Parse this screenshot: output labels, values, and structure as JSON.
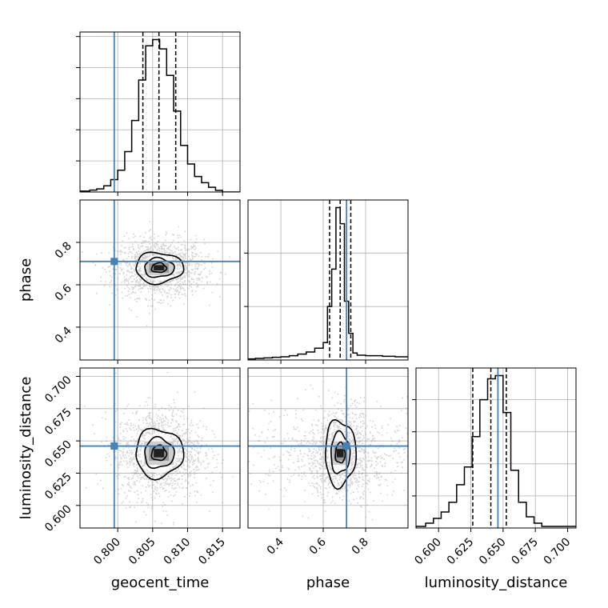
{
  "chart_data": {
    "type": "corner",
    "parameters": [
      "geocent_time",
      "phase",
      "luminosity_distance"
    ],
    "truths": {
      "geocent_time": 0.7995,
      "phase": 0.71,
      "luminosity_distance": 0.646
    },
    "ranges": {
      "geocent_time": [
        0.7946,
        0.8175
      ],
      "phase": [
        0.245,
        1.0
      ],
      "luminosity_distance": [
        0.5825,
        0.7065
      ]
    },
    "ticks": {
      "geocent_time": [
        "0.800",
        "0.805",
        "0.810",
        "0.815"
      ],
      "phase": [
        "0.4",
        "0.6",
        "0.8"
      ],
      "luminosity_distance": [
        "0.600",
        "0.625",
        "0.650",
        "0.675",
        "0.700"
      ]
    },
    "quantiles": {
      "geocent_time": [
        0.8036,
        0.8059,
        0.8083
      ],
      "phase": [
        0.63,
        0.68,
        0.73
      ],
      "luminosity_distance": [
        0.6265,
        0.6405,
        0.6525
      ]
    },
    "histograms": {
      "geocent_time": {
        "bin_edges": [
          0.7946,
          0.796,
          0.797,
          0.798,
          0.799,
          0.8,
          0.801,
          0.802,
          0.803,
          0.804,
          0.805,
          0.806,
          0.807,
          0.808,
          0.809,
          0.81,
          0.811,
          0.812,
          0.813,
          0.814,
          0.815,
          0.8175
        ],
        "counts": [
          0.6,
          1.2,
          2.0,
          4.0,
          8.0,
          14.0,
          26.0,
          46.0,
          72.0,
          94.0,
          98.0,
          92.0,
          75.0,
          52.0,
          30.0,
          18.0,
          10.0,
          6.0,
          3.0,
          1.0,
          0.0
        ]
      },
      "phase": {
        "bin_edges": [
          0.245,
          0.28,
          0.32,
          0.36,
          0.4,
          0.44,
          0.48,
          0.52,
          0.56,
          0.6,
          0.62,
          0.64,
          0.66,
          0.68,
          0.7,
          0.72,
          0.74,
          0.76,
          0.8,
          0.84,
          0.88,
          0.94,
          1.0
        ],
        "counts": [
          0.4,
          0.6,
          0.8,
          1.0,
          1.2,
          1.6,
          2.2,
          3.0,
          4.4,
          6.5,
          20.0,
          34.0,
          57.0,
          51.0,
          22.0,
          10.0,
          2.6,
          1.8,
          1.6,
          1.6,
          1.4,
          1.2
        ]
      },
      "luminosity_distance": {
        "bin_edges": [
          0.5825,
          0.59,
          0.596,
          0.602,
          0.608,
          0.614,
          0.62,
          0.626,
          0.632,
          0.638,
          0.644,
          0.65,
          0.656,
          0.662,
          0.668,
          0.674,
          0.68,
          0.7065
        ],
        "counts": [
          1.0,
          3.0,
          6.0,
          10.0,
          16.0,
          27.0,
          38.0,
          57.0,
          80.0,
          93.0,
          95.0,
          72.0,
          36.0,
          16.0,
          7.0,
          3.0,
          1.0
        ]
      }
    },
    "contour_levels": [
      "inner",
      "middle",
      "outer"
    ],
    "axis_labels": {
      "geocent_time": "geocent_time",
      "phase": "phase",
      "luminosity_distance": "luminosity_distance"
    },
    "grid": true,
    "colors": {
      "truth": "#4682b4",
      "line": "#000000",
      "grid": "#b0b0b0",
      "scatter": "#808080"
    }
  }
}
